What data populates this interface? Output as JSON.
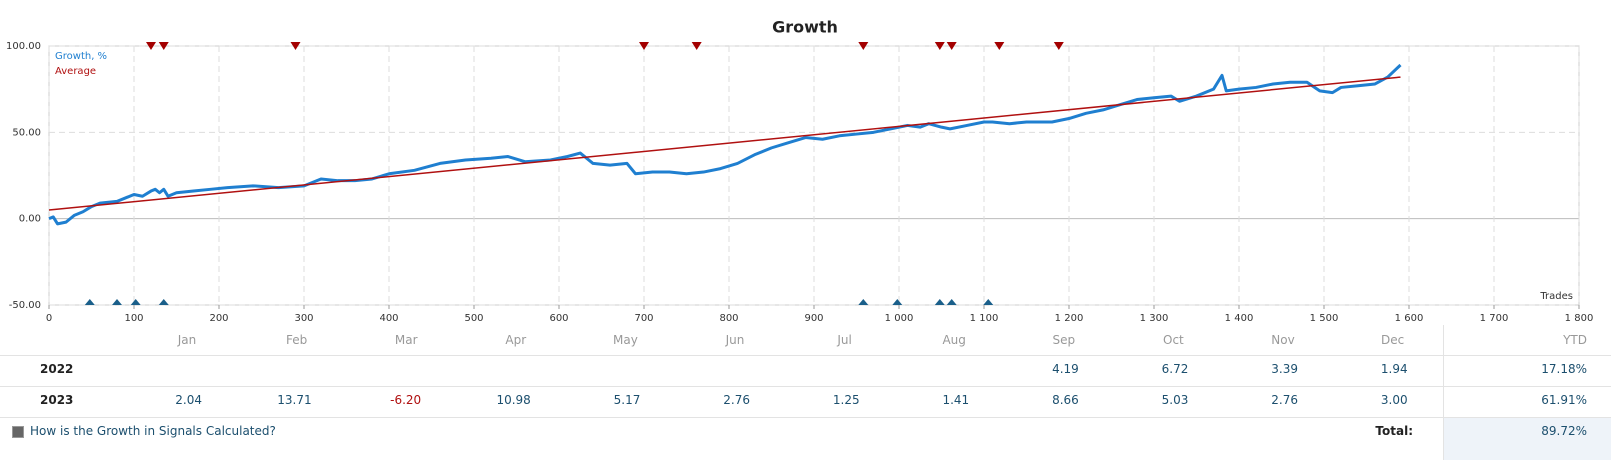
{
  "chart_data": {
    "type": "line",
    "title": "Growth",
    "x_label": "Trades",
    "series": [
      {
        "name": "Growth, %",
        "color": "#1f7fd0",
        "x": [
          0,
          5,
          10,
          20,
          30,
          40,
          50,
          60,
          80,
          90,
          100,
          110,
          120,
          125,
          130,
          135,
          140,
          150,
          170,
          190,
          210,
          240,
          270,
          300,
          320,
          340,
          360,
          380,
          400,
          430,
          460,
          490,
          520,
          540,
          560,
          590,
          610,
          625,
          640,
          660,
          680,
          690,
          710,
          730,
          750,
          770,
          790,
          810,
          830,
          850,
          870,
          890,
          910,
          930,
          950,
          970,
          990,
          1010,
          1025,
          1035,
          1050,
          1060,
          1080,
          1100,
          1110,
          1130,
          1150,
          1180,
          1200,
          1220,
          1240,
          1260,
          1280,
          1300,
          1320,
          1330,
          1350,
          1370,
          1380,
          1385,
          1400,
          1420,
          1440,
          1460,
          1480,
          1495,
          1510,
          1520,
          1540,
          1560,
          1575,
          1590
        ],
        "values": [
          0,
          1,
          -3,
          -2,
          2,
          4,
          7,
          9,
          10,
          12,
          14,
          13,
          16,
          17,
          15,
          17,
          13,
          15,
          16,
          17,
          18,
          19,
          18,
          19,
          23,
          22,
          22,
          23,
          26,
          28,
          32,
          34,
          35,
          36,
          33,
          34,
          36,
          38,
          32,
          31,
          32,
          26,
          27,
          27,
          26,
          27,
          29,
          32,
          37,
          41,
          44,
          47,
          46,
          48,
          49,
          50,
          52,
          54,
          53,
          55,
          53,
          52,
          54,
          56,
          56,
          55,
          56,
          56,
          58,
          61,
          63,
          66,
          69,
          70,
          71,
          68,
          71,
          75,
          83,
          74,
          75,
          76,
          78,
          79,
          79,
          74,
          73,
          76,
          77,
          78,
          82,
          89
        ]
      },
      {
        "name": "Average",
        "color": "#b01010",
        "x": [
          0,
          1590
        ],
        "values": [
          5,
          82
        ]
      }
    ],
    "markers": [
      {
        "position": "top",
        "color": "#a30000",
        "x": [
          120,
          135,
          290,
          700,
          762,
          958,
          1048,
          1062,
          1118,
          1188
        ]
      },
      {
        "position": "bottom",
        "color": "#1a5f8a",
        "x": [
          48,
          80,
          102,
          135,
          958,
          998,
          1048,
          1062,
          1105
        ]
      }
    ],
    "xlim": [
      0,
      1800
    ],
    "xticks": [
      0,
      100,
      200,
      300,
      400,
      500,
      600,
      700,
      800,
      900,
      {
        "value": 1000,
        "label": "1 000"
      },
      {
        "value": 1100,
        "label": "1 100"
      },
      {
        "value": 1200,
        "label": "1 200"
      },
      {
        "value": 1300,
        "label": "1 300"
      },
      {
        "value": 1400,
        "label": "1 400"
      },
      {
        "value": 1500,
        "label": "1 500"
      },
      {
        "value": 1600,
        "label": "1 600"
      },
      {
        "value": 1700,
        "label": "1 700"
      },
      {
        "value": 1800,
        "label": "1 800"
      }
    ],
    "ylim": [
      -50,
      100
    ],
    "yticks": [
      {
        "value": -50,
        "label": "-50.00"
      },
      {
        "value": 0,
        "label": "0.00"
      },
      {
        "value": 50,
        "label": "50.00"
      },
      {
        "value": 100,
        "label": "100.00"
      }
    ],
    "grid": true
  },
  "table": {
    "columns": [
      "Jan",
      "Feb",
      "Mar",
      "Apr",
      "May",
      "Jun",
      "Jul",
      "Aug",
      "Sep",
      "Oct",
      "Nov",
      "Dec",
      "YTD"
    ],
    "rows": [
      {
        "year": "2022",
        "cells": [
          null,
          null,
          null,
          null,
          null,
          null,
          null,
          null,
          "4.19",
          "6.72",
          "3.39",
          "1.94"
        ],
        "ytd": "17.18%"
      },
      {
        "year": "2023",
        "cells": [
          "2.04",
          "13.71",
          "-6.20",
          "10.98",
          "5.17",
          "2.76",
          "1.25",
          "1.41",
          "8.66",
          "5.03",
          "2.76",
          "3.00"
        ],
        "ytd": "61.91%"
      }
    ],
    "footer": {
      "link": "How is the Growth in Signals Calculated?",
      "total_label": "Total:",
      "total": "89.72%"
    }
  }
}
